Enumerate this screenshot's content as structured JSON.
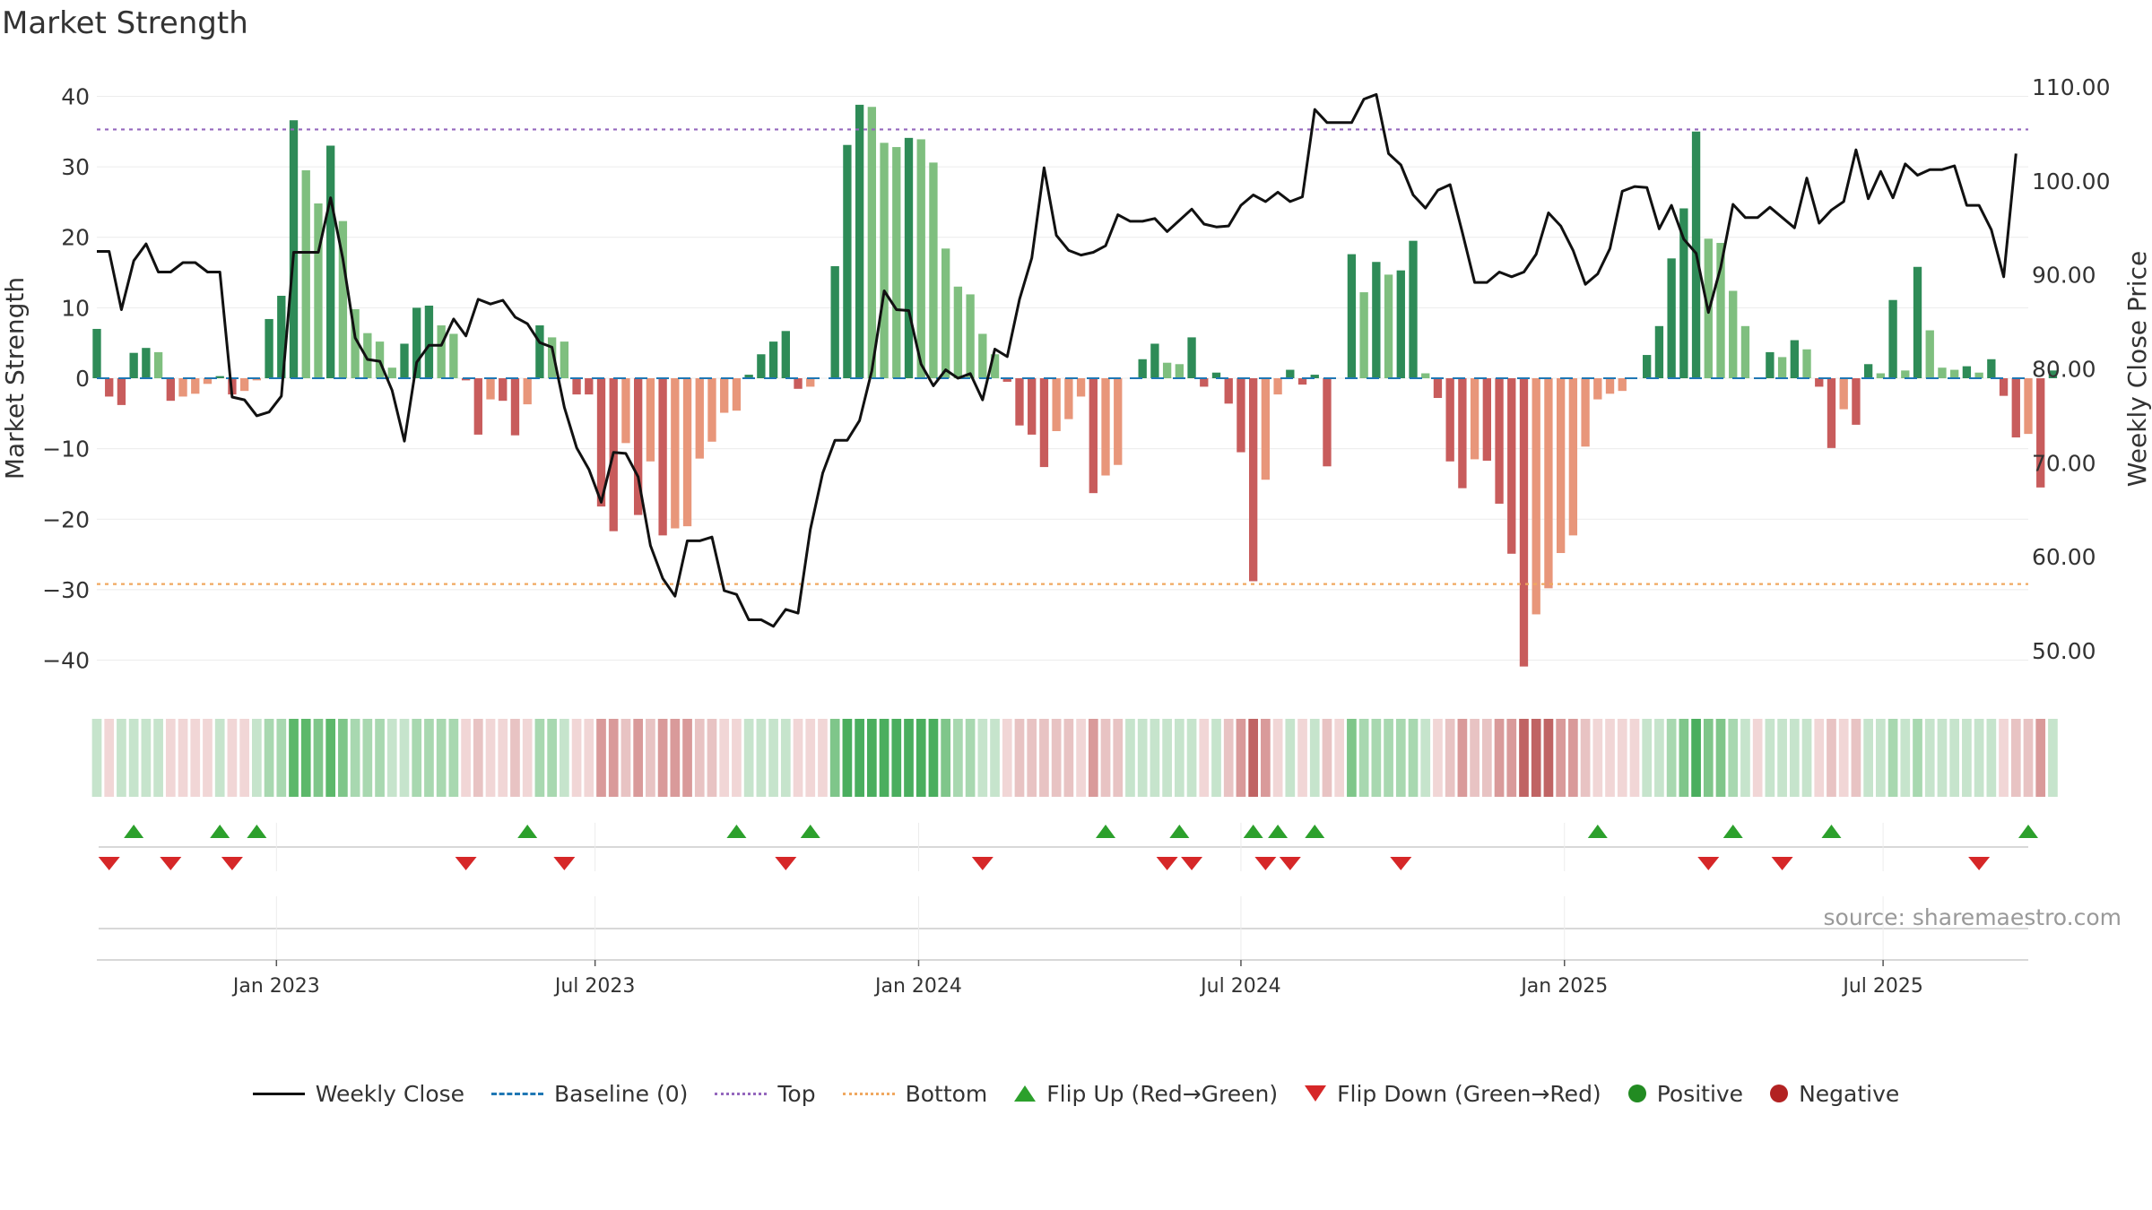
{
  "title": "Market Strength",
  "source": "source: sharemaestro.com",
  "colors": {
    "strong_green": "#2e8b57",
    "light_green": "#7fbf7f",
    "strong_red": "#c85c5c",
    "light_red": "#e8967a",
    "price_line": "#111111",
    "baseline": "#1f77b4",
    "top_line": "#9467bd",
    "bottom_line": "#f0a860",
    "flip_up": "#2ca02c",
    "flip_down": "#d62728",
    "positive": "#228b22",
    "negative": "#b22222"
  },
  "legend": [
    {
      "key": "weekly_close",
      "label": "Weekly Close",
      "kind": "line",
      "color": "#111111",
      "style": "solid"
    },
    {
      "key": "baseline",
      "label": "Baseline (0)",
      "kind": "line",
      "color": "#1f77b4",
      "style": "dashed"
    },
    {
      "key": "top",
      "label": "Top",
      "kind": "line",
      "color": "#9467bd",
      "style": "dotted"
    },
    {
      "key": "bottom",
      "label": "Bottom",
      "kind": "line",
      "color": "#f0a860",
      "style": "dotted"
    },
    {
      "key": "flip_up",
      "label": "Flip Up (Red→Green)",
      "kind": "tri-up",
      "color": "#2ca02c"
    },
    {
      "key": "flip_down",
      "label": "Flip Down (Green→Red)",
      "kind": "tri-down",
      "color": "#d62728"
    },
    {
      "key": "positive",
      "label": "Positive",
      "kind": "dot",
      "color": "#228b22"
    },
    {
      "key": "negative",
      "label": "Negative",
      "kind": "dot",
      "color": "#b22222"
    }
  ],
  "chart_data": {
    "type": "bar",
    "title": "Market Strength",
    "ylabel": "Market Strength",
    "y2label": "Weekly Close Price",
    "ylim": [
      -44,
      44
    ],
    "y2lim": [
      46,
      112
    ],
    "yticks": [
      "−40",
      "−30",
      "−20",
      "−10",
      "0",
      "10",
      "20",
      "30",
      "40"
    ],
    "y2ticks": [
      "50.00",
      "60.00",
      "70.00",
      "80.00",
      "90.00",
      "100.00",
      "110.00"
    ],
    "x_range_weeks": [
      0,
      157
    ],
    "x_ticks": [
      {
        "label": "Jan 2023",
        "week": 14.6
      },
      {
        "label": "Jul 2023",
        "week": 40.5
      },
      {
        "label": "Jan 2024",
        "week": 66.8
      },
      {
        "label": "Jul 2024",
        "week": 93
      },
      {
        "label": "Jan 2025",
        "week": 119.3
      },
      {
        "label": "Jul 2025",
        "week": 145.2
      }
    ],
    "top_level": 35.3,
    "bottom_level": -29.2,
    "strength": [
      7,
      -2.6,
      -3.8,
      3.6,
      4.3,
      3.7,
      -3.2,
      -2.6,
      -2.2,
      -0.8,
      0.3,
      -2.3,
      -1.8,
      -0.3,
      8.4,
      11.7,
      36.6,
      29.5,
      24.8,
      33,
      22.3,
      9.8,
      6.4,
      5.2,
      1.5,
      4.9,
      10,
      10.3,
      7.5,
      6.3,
      -0.3,
      -8,
      -3,
      -3.2,
      -8.1,
      -3.7,
      7.5,
      5.8,
      5.2,
      -2.3,
      -2.3,
      -18.2,
      -21.7,
      -9.2,
      -19.4,
      -11.8,
      -22.3,
      -21.3,
      -21,
      -11.4,
      -9,
      -4.9,
      -4.6,
      0.5,
      3.4,
      5.2,
      6.7,
      -1.5,
      -1.2,
      0,
      15.9,
      33.1,
      38.8,
      38.5,
      33.4,
      32.8,
      34.1,
      33.9,
      30.6,
      18.4,
      13,
      11.9,
      6.3,
      3.4,
      -0.5,
      -6.7,
      -8,
      -12.6,
      -7.5,
      -5.8,
      -2.6,
      -16.3,
      -13.8,
      -12.3,
      0,
      2.7,
      4.9,
      2.2,
      2,
      5.8,
      -1.2,
      0.8,
      -3.6,
      -10.5,
      -28.8,
      -14.4,
      -2.3,
      1.2,
      -0.9,
      0.5,
      -12.5,
      0,
      17.6,
      12.2,
      16.5,
      14.7,
      15.3,
      19.5,
      0.7,
      -2.8,
      -11.8,
      -15.6,
      -11.5,
      -11.7,
      -17.8,
      -24.9,
      -40.9,
      -33.5,
      -29.8,
      -24.8,
      -22.3,
      -9.7,
      -3,
      -2.2,
      -1.8,
      0,
      3.3,
      7.4,
      17,
      24.1,
      35,
      19.8,
      19.2,
      12.4,
      7.4,
      0,
      3.7,
      3,
      5.4,
      4.1,
      -1.2,
      -9.9,
      -4.4,
      -6.6,
      2,
      0.7,
      11.1,
      1.1,
      15.8,
      6.8,
      1.5,
      1.2,
      1.7,
      0.8,
      2.7,
      -2.5,
      -8.4,
      -7.9,
      -15.5,
      1.1
    ],
    "close": [
      92.5,
      92.5,
      86.3,
      91.5,
      93.3,
      90.3,
      90.3,
      91.3,
      91.3,
      90.3,
      90.3,
      77,
      76.7,
      75,
      75.4,
      77.1,
      92.4,
      92.4,
      92.4,
      98.2,
      91.7,
      83.3,
      81,
      80.8,
      77.7,
      72.3,
      80.7,
      82.5,
      82.5,
      85.3,
      83.5,
      87.4,
      86.9,
      87.3,
      85.5,
      84.8,
      82.8,
      82.3,
      75.9,
      71.6,
      69.3,
      65.8,
      71.1,
      71,
      68.5,
      61.2,
      57.7,
      55.8,
      61.7,
      61.7,
      62.1,
      56.4,
      56,
      53.3,
      53.3,
      52.6,
      54.4,
      54,
      62.9,
      68.9,
      72.4,
      72.4,
      74.5,
      79.8,
      88.3,
      86.3,
      86.2,
      80.5,
      78.2,
      79.9,
      79,
      79.5,
      76.7,
      82.1,
      81.3,
      87.4,
      91.8,
      101.4,
      94.2,
      92.6,
      92.1,
      92.4,
      93.1,
      96.4,
      95.7,
      95.7,
      96,
      94.6,
      95.8,
      97,
      95.4,
      95.1,
      95.2,
      97.4,
      98.5,
      97.8,
      98.8,
      97.8,
      98.3,
      107.6,
      106.2,
      106.2,
      106.2,
      108.7,
      109.2,
      102.9,
      101.7,
      98.5,
      97.1,
      99,
      99.6,
      94.5,
      89.2,
      89.2,
      90.3,
      89.8,
      90.3,
      92.2,
      96.6,
      95.2,
      92.6,
      89,
      90.1,
      92.8,
      98.9,
      99.4,
      99.3,
      94.9,
      97.4,
      93.8,
      92.3,
      86,
      90.8,
      97.5,
      96.1,
      96.1,
      97.2,
      96.1,
      95,
      100.3,
      95.5,
      96.9,
      97.8,
      103.3,
      98.1,
      101,
      98.2,
      101.8,
      100.6,
      101.2,
      101.2,
      101.6,
      97.4,
      97.4,
      94.8,
      89.8,
      102.9
    ],
    "strip_colors": [
      "#c6e4cc",
      "#f1d6d6",
      "#c6e4cc",
      "#c6e4cc",
      "#c6e4cc",
      "#c6e4cc",
      "#f1d6d6",
      "#f1d6d6",
      "#f1d6d6",
      "#f1d6d6",
      "#c6e4cc",
      "#f1d6d6",
      "#f1d6d6",
      "#c6e4cc",
      "#a8d8b0",
      "#a8d8b0",
      "#5cb86a",
      "#5cb86a",
      "#7fc68a",
      "#5cb86a",
      "#7fc68a",
      "#a8d8b0",
      "#a8d8b0",
      "#a8d8b0",
      "#c6e4cc",
      "#c6e4cc",
      "#a8d8b0",
      "#a8d8b0",
      "#a8d8b0",
      "#a8d8b0",
      "#f1d6d6",
      "#e8c3c3",
      "#f1d6d6",
      "#f1d6d6",
      "#e8c3c3",
      "#f1d6d6",
      "#a8d8b0",
      "#a8d8b0",
      "#c6e4cc",
      "#f1d6d6",
      "#f1d6d6",
      "#d99a9a",
      "#d99a9a",
      "#e8c3c3",
      "#d99a9a",
      "#e8c3c3",
      "#d99a9a",
      "#d99a9a",
      "#d99a9a",
      "#e8c3c3",
      "#e8c3c3",
      "#f1d6d6",
      "#f1d6d6",
      "#c6e4cc",
      "#c6e4cc",
      "#c6e4cc",
      "#c6e4cc",
      "#f1d6d6",
      "#f1d6d6",
      "#f1d6d6",
      "#7fc68a",
      "#4aae5e",
      "#4aae5e",
      "#4aae5e",
      "#4aae5e",
      "#4aae5e",
      "#4aae5e",
      "#4aae5e",
      "#4aae5e",
      "#7fc68a",
      "#a8d8b0",
      "#a8d8b0",
      "#c6e4cc",
      "#c6e4cc",
      "#f1d6d6",
      "#e8c3c3",
      "#e8c3c3",
      "#e8c3c3",
      "#e8c3c3",
      "#e8c3c3",
      "#f1d6d6",
      "#d99a9a",
      "#e8c3c3",
      "#e8c3c3",
      "#c6e4cc",
      "#c6e4cc",
      "#c6e4cc",
      "#c6e4cc",
      "#c6e4cc",
      "#c6e4cc",
      "#f1d6d6",
      "#c6e4cc",
      "#e8c3c3",
      "#d99a9a",
      "#c06464",
      "#d99a9a",
      "#f1d6d6",
      "#c6e4cc",
      "#f1d6d6",
      "#c6e4cc",
      "#e8c3c3",
      "#f1d6d6",
      "#7fc68a",
      "#a8d8b0",
      "#a8d8b0",
      "#a8d8b0",
      "#a8d8b0",
      "#a8d8b0",
      "#c6e4cc",
      "#f1d6d6",
      "#e8c3c3",
      "#d99a9a",
      "#e8c3c3",
      "#e8c3c3",
      "#d99a9a",
      "#d99a9a",
      "#c06464",
      "#c06464",
      "#c06464",
      "#d99a9a",
      "#d99a9a",
      "#e8c3c3",
      "#f1d6d6",
      "#f1d6d6",
      "#f1d6d6",
      "#f1d6d6",
      "#c6e4cc",
      "#c6e4cc",
      "#a8d8b0",
      "#7fc68a",
      "#4aae5e",
      "#7fc68a",
      "#7fc68a",
      "#a8d8b0",
      "#c6e4cc",
      "#f1d6d6",
      "#c6e4cc",
      "#c6e4cc",
      "#c6e4cc",
      "#c6e4cc",
      "#f1d6d6",
      "#e8c3c3",
      "#f1d6d6",
      "#e8c3c3",
      "#c6e4cc",
      "#c6e4cc",
      "#a8d8b0",
      "#c6e4cc",
      "#a8d8b0",
      "#c6e4cc",
      "#c6e4cc",
      "#c6e4cc",
      "#c6e4cc",
      "#c6e4cc",
      "#c6e4cc",
      "#f1d6d6",
      "#e8c3c3",
      "#e8c3c3",
      "#d99a9a",
      "#c6e4cc"
    ],
    "flip_up_weeks": [
      3,
      10,
      13,
      35,
      52,
      58,
      82,
      88,
      94,
      96,
      99,
      122,
      133,
      141,
      157
    ],
    "flip_down_weeks": [
      1,
      6,
      11,
      30,
      38,
      56,
      72,
      87,
      89,
      95,
      97,
      106,
      131,
      137,
      153
    ]
  }
}
